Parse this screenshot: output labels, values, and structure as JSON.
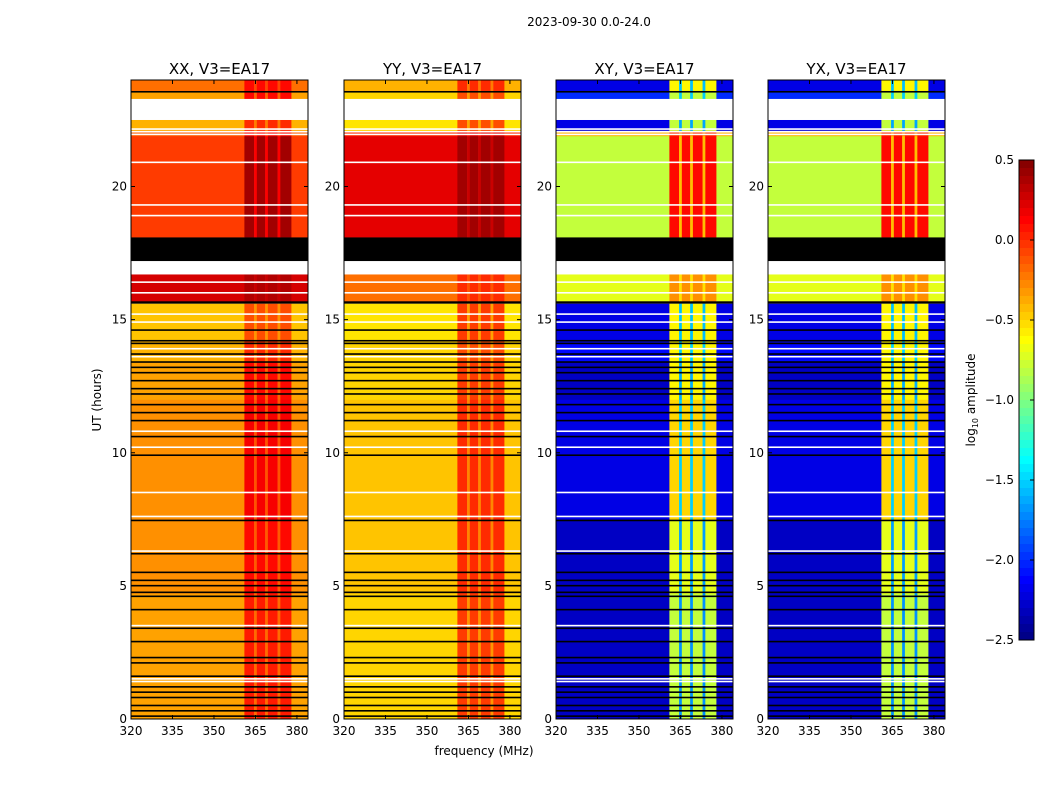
{
  "chart_data": {
    "type": "heatmap",
    "suptitle": "2023-09-30 0.0-24.0",
    "xlabel": "frequency (MHz)",
    "ylabel": "UT (hours)",
    "xlim": [
      320,
      384
    ],
    "ylim": [
      0,
      24
    ],
    "xticks": [
      320,
      335,
      350,
      365,
      380
    ],
    "yticks": [
      0,
      5,
      10,
      15,
      20
    ],
    "colorbar": {
      "label": "log10 amplitude",
      "label_main": "log",
      "label_sub": "10",
      "label_rest": " amplitude",
      "colormap": "jet",
      "range": [
        -2.5,
        0.5
      ],
      "ticks": [
        "0.5",
        "0.0",
        "−0.5",
        "−1.0",
        "−1.5",
        "−2.0",
        "−2.5"
      ],
      "tick_values": [
        0.5,
        0.0,
        -0.5,
        -1.0,
        -1.5,
        -2.0,
        -2.5
      ]
    },
    "panels": [
      {
        "title": "XX, V3=EA17"
      },
      {
        "title": "YY, V3=EA17"
      },
      {
        "title": "XY, V3=EA17"
      },
      {
        "title": "YX, V3=EA17"
      }
    ],
    "freq_bins": [
      {
        "f": [
          320,
          361
        ],
        "band": 0
      },
      {
        "f": [
          361,
          364.5
        ],
        "band": 1
      },
      {
        "f": [
          364.5,
          365.5
        ],
        "band": 0.4
      },
      {
        "f": [
          365.5,
          368.5
        ],
        "band": 1
      },
      {
        "f": [
          368.5,
          369.5
        ],
        "band": 0.4
      },
      {
        "f": [
          369.5,
          373
        ],
        "band": 1
      },
      {
        "f": [
          373,
          374
        ],
        "band": 0.4
      },
      {
        "f": [
          374,
          378
        ],
        "band": 1
      },
      {
        "f": [
          378,
          384
        ],
        "band": 0
      }
    ],
    "time_segments": [
      {
        "t": [
          0,
          4.7
        ],
        "state": "data",
        "values": [
          [
            -0.35,
            0.05
          ],
          [
            -0.5,
            -0.05
          ],
          [
            -2.3,
            -0.8
          ],
          [
            -2.3,
            -0.8
          ]
        ]
      },
      {
        "t": [
          4.7,
          7.5
        ],
        "state": "data",
        "values": [
          [
            -0.3,
            0.1
          ],
          [
            -0.45,
            0.0
          ],
          [
            -2.3,
            -0.7
          ],
          [
            -2.3,
            -0.7
          ]
        ]
      },
      {
        "t": [
          7.5,
          12
        ],
        "state": "data",
        "values": [
          [
            -0.3,
            0.15
          ],
          [
            -0.45,
            0.0
          ],
          [
            -2.2,
            -0.5
          ],
          [
            -2.2,
            -0.5
          ]
        ]
      },
      {
        "t": [
          12,
          13.4
        ],
        "state": "data",
        "values": [
          [
            -0.35,
            0.1
          ],
          [
            -0.5,
            -0.05
          ],
          [
            -2.3,
            -0.6
          ],
          [
            -2.3,
            -0.6
          ]
        ]
      },
      {
        "t": [
          13.4,
          14.2
        ],
        "state": "data",
        "values": [
          [
            -0.4,
            0.0
          ],
          [
            -0.5,
            -0.1
          ],
          [
            -2.1,
            -0.6
          ],
          [
            -2.1,
            -0.6
          ]
        ]
      },
      {
        "t": [
          14.2,
          15.6
        ],
        "state": "data",
        "values": [
          [
            -0.45,
            -0.1
          ],
          [
            -0.55,
            -0.05
          ],
          [
            -2.2,
            -0.6
          ],
          [
            -2.2,
            -0.6
          ]
        ]
      },
      {
        "t": [
          15.6,
          15.7
        ],
        "state": "masked"
      },
      {
        "t": [
          15.7,
          16.7
        ],
        "state": "data",
        "values": [
          [
            0.25,
            0.35
          ],
          [
            -0.2,
            0.0
          ],
          [
            -0.7,
            -0.3
          ],
          [
            -0.7,
            -0.3
          ]
        ]
      },
      {
        "t": [
          16.7,
          17.2
        ],
        "state": "flagged"
      },
      {
        "t": [
          17.2,
          18.1
        ],
        "state": "masked"
      },
      {
        "t": [
          18.1,
          21.9
        ],
        "state": "data",
        "values": [
          [
            -0.05,
            0.4
          ],
          [
            0.2,
            0.4
          ],
          [
            -0.8,
            0.1
          ],
          [
            -0.8,
            0.1
          ]
        ]
      },
      {
        "t": [
          21.9,
          22.1
        ],
        "state": "data",
        "values": [
          [
            -0.15,
            0.1
          ],
          [
            0.0,
            0.2
          ],
          [
            -0.4,
            0.0
          ],
          [
            -0.4,
            0.0
          ]
        ]
      },
      {
        "t": [
          22.1,
          22.5
        ],
        "state": "data",
        "values": [
          [
            -0.4,
            0.0
          ],
          [
            -0.55,
            -0.1
          ],
          [
            -2.2,
            -0.8
          ],
          [
            -2.2,
            -0.8
          ]
        ]
      },
      {
        "t": [
          22.5,
          23.3
        ],
        "state": "flagged"
      },
      {
        "t": [
          23.3,
          23.6
        ],
        "state": "data",
        "values": [
          [
            -0.35,
            0.1
          ],
          [
            -0.5,
            -0.1
          ],
          [
            -2.0,
            -0.8
          ],
          [
            -2.0,
            -0.8
          ]
        ]
      },
      {
        "t": [
          23.6,
          24
        ],
        "state": "data",
        "values": [
          [
            -0.2,
            0.1
          ],
          [
            -0.4,
            0.0
          ],
          [
            -2.2,
            -0.6
          ],
          [
            -2.2,
            -0.6
          ]
        ]
      }
    ],
    "masked_lines_hours": [
      0.1,
      0.3,
      0.5,
      0.8,
      1.0,
      1.2,
      1.6,
      2.1,
      2.3,
      2.9,
      3.4,
      4.1,
      4.6,
      4.75,
      5.0,
      5.2,
      5.5,
      6.2,
      7.45,
      9.9,
      10.6,
      11.2,
      11.5,
      11.8,
      12.2,
      12.4,
      12.7,
      13.0,
      13.2,
      13.4,
      13.7,
      14.1,
      14.2,
      14.6,
      17.8,
      18.0,
      23.55
    ],
    "flagged_lines_hours": [
      1.4,
      1.5,
      3.5,
      6.3,
      7.6,
      8.5,
      10.2,
      10.8,
      13.6,
      13.9,
      14.9,
      15.2,
      16.0,
      16.4,
      18.9,
      19.3,
      20.9,
      21.95,
      22.05,
      22.15
    ]
  }
}
